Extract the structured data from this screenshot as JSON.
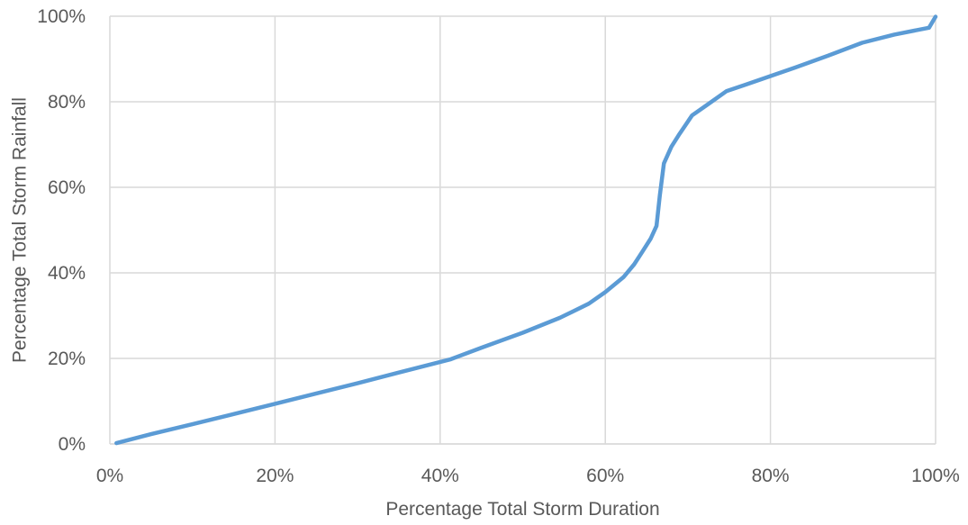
{
  "chart_data": {
    "type": "line",
    "title": "",
    "xlabel": "Percentage Total Storm Duration",
    "ylabel": "Percentage Total Storm Rainfall",
    "xlim": [
      0,
      100
    ],
    "ylim": [
      0,
      100
    ],
    "x_ticks": [
      "0%",
      "20%",
      "40%",
      "60%",
      "80%",
      "100%"
    ],
    "y_ticks": [
      "0%",
      "20%",
      "40%",
      "60%",
      "80%",
      "100%"
    ],
    "grid": true,
    "legend": "none",
    "series": [
      {
        "color": "#5b9bd5",
        "points": [
          [
            0.8,
            0.2
          ],
          [
            5,
            2.3
          ],
          [
            10,
            4.6
          ],
          [
            15,
            7
          ],
          [
            20,
            9.4
          ],
          [
            25,
            11.8
          ],
          [
            30,
            14.2
          ],
          [
            35,
            16.7
          ],
          [
            41.3,
            19.8
          ],
          [
            45,
            22.5
          ],
          [
            50,
            26
          ],
          [
            54.5,
            29.5
          ],
          [
            58,
            32.8
          ],
          [
            60,
            35.5
          ],
          [
            62.2,
            39
          ],
          [
            63.5,
            42
          ],
          [
            64.5,
            45
          ],
          [
            65.5,
            48
          ],
          [
            66.2,
            51
          ],
          [
            66.6,
            58
          ],
          [
            67.1,
            65.6
          ],
          [
            68,
            69.5
          ],
          [
            69,
            72.5
          ],
          [
            70.5,
            76.8
          ],
          [
            72.5,
            79.5
          ],
          [
            74.7,
            82.5
          ],
          [
            77,
            84
          ],
          [
            80,
            86
          ],
          [
            83,
            88
          ],
          [
            87,
            90.8
          ],
          [
            91.1,
            93.8
          ],
          [
            95,
            95.7
          ],
          [
            99.2,
            97.3
          ],
          [
            100,
            99.9
          ]
        ]
      }
    ]
  }
}
